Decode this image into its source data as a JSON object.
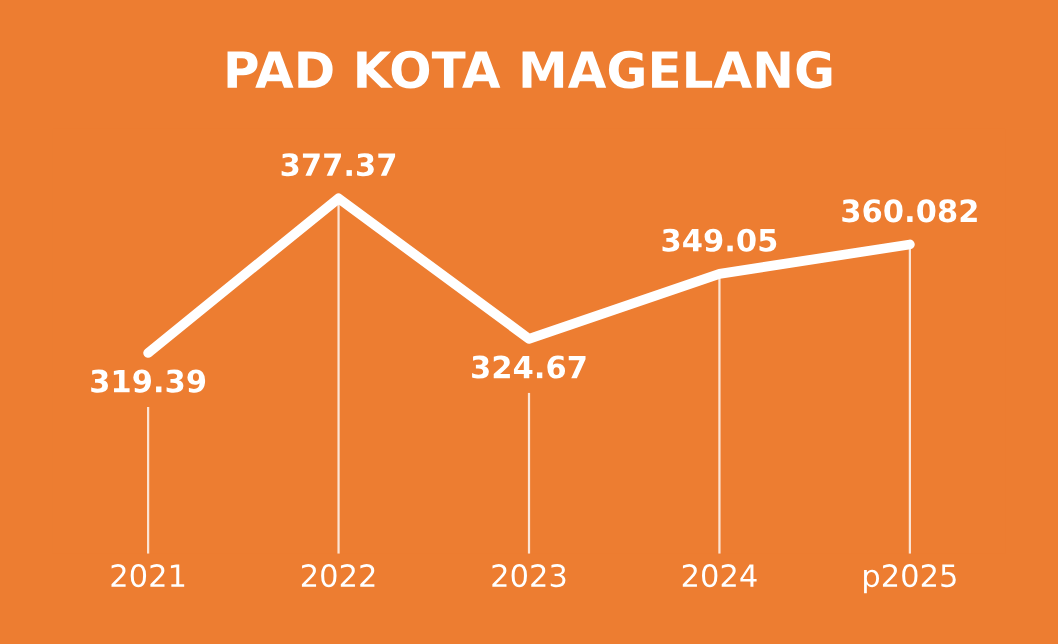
{
  "chart_data": {
    "type": "line",
    "title": "PAD KOTA MAGELANG",
    "categories": [
      "2021",
      "2022",
      "2023",
      "2024",
      "p2025"
    ],
    "series": [
      {
        "color": "#ffffff",
        "values": [
          319.39,
          377.37,
          324.67,
          349.05,
          360.082
        ]
      }
    ],
    "data_labels": true,
    "marker": "none",
    "line_style": "solid",
    "grid": "x",
    "legend": false,
    "tick_labels": "x"
  }
}
